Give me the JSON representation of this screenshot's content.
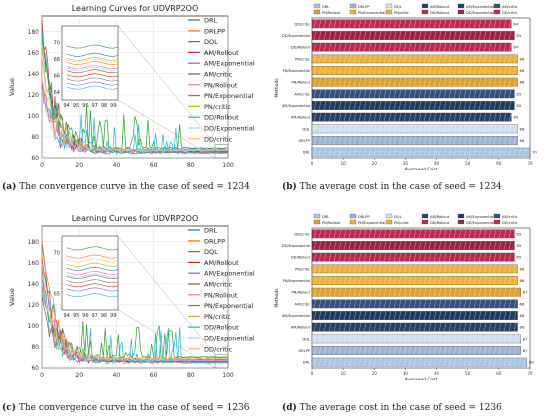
{
  "captions": [
    {
      "label": "(a)",
      "text": " The convergence curve in the case of seed = 1234"
    },
    {
      "label": "(b)",
      "text": " The average cost in the case of seed = 1234"
    },
    {
      "label": "(c)",
      "text": " The convergence curve in the case of seed = 1236"
    },
    {
      "label": "(d)",
      "text": " The average cost in the case of seed = 1236"
    }
  ],
  "colors": {
    "DRL": "#a8c8e8",
    "DRLPP": "#9cb4d4",
    "DQL": "#cfe0f0",
    "AMRollout": "#283f66",
    "AMExponential": "#1e3a5f",
    "AMcritic": "#34507a",
    "PNRollout": "#e0a22a",
    "PNExponential": "#f0b030",
    "PNcritic": "#eab040",
    "DDRollout": "#b8284e",
    "DDExponential": "#a01f44",
    "DDcritic": "#c02a52"
  },
  "chart_data": [
    {
      "type": "line",
      "title": "Learning Curves for UDVRP2OO",
      "xlabel": "Epoch",
      "ylabel": "Value",
      "xlim": [
        0,
        100
      ],
      "ylim": [
        60,
        195
      ],
      "xticks": [
        "0",
        "20",
        "40",
        "60",
        "80",
        "100"
      ],
      "yticks": [
        "60",
        "80",
        "100",
        "120",
        "140",
        "160",
        "180"
      ],
      "legend": [
        "DRL",
        "DRLPP",
        "DQL",
        "AM/Rollout",
        "AM/Exponential",
        "AM/critic",
        "PN/Rollout",
        "PN/Exponential",
        "PN/critic",
        "DD/Rollout",
        "DD/Exponential",
        "DD/critic"
      ],
      "inset": {
        "xticks": [
          "94",
          "95",
          "96",
          "97",
          "98",
          "99"
        ],
        "yticks": [
          "64",
          "66",
          "68",
          "70"
        ]
      },
      "series": [
        {
          "name": "DRL",
          "color": "#1f77b4",
          "final": 68.5
        },
        {
          "name": "DRLPP",
          "color": "#ff7f0e",
          "final": 67.5
        },
        {
          "name": "DQL",
          "color": "#2ca02c",
          "final": 69.5
        },
        {
          "name": "AM/Rollout",
          "color": "#d62728",
          "final": 66.0
        },
        {
          "name": "AM/Exponential",
          "color": "#9467bd",
          "final": 65.0
        },
        {
          "name": "AM/critic",
          "color": "#8c564b",
          "final": 66.5
        },
        {
          "name": "PN/Rollout",
          "color": "#e377c2",
          "final": 67.0
        },
        {
          "name": "PN/Exponential",
          "color": "#7f7f7f",
          "final": 65.5
        },
        {
          "name": "PN/critic",
          "color": "#bcbd22",
          "final": 68.0
        },
        {
          "name": "DD/Rollout",
          "color": "#17becf",
          "final": 64.5
        },
        {
          "name": "DD/Exponential",
          "color": "#aec7e8",
          "final": 66.8
        },
        {
          "name": "DD/critic",
          "color": "#ffbb78",
          "final": 67.8
        }
      ]
    },
    {
      "type": "bar",
      "orientation": "horizontal",
      "xlabel": "Averaged Cost",
      "ylabel": "Methods",
      "xlim": [
        0,
        70
      ],
      "xticks": [
        "0",
        "10",
        "20",
        "30",
        "40",
        "50",
        "60",
        "70"
      ],
      "legend": [
        "DRL",
        "DRLPP",
        "DQL",
        "AM/Rollout",
        "AM/Exponential",
        "AM/critic",
        "PN/Rollout",
        "PN/Exponential",
        "PN/critic",
        "DD/Rollout",
        "DD/Exponential",
        "DD/critic"
      ],
      "categories": [
        "DD/critic",
        "DD/Exponential",
        "DD/Rollout",
        "PN/critic",
        "PN/Exponential",
        "PN/Rollout",
        "AM/critic",
        "AM/Exponential",
        "AM/Rollout",
        "DQL",
        "DRLPP",
        "DRL"
      ],
      "values": [
        64,
        65,
        64,
        66,
        66,
        66,
        65,
        65,
        64,
        66,
        66,
        70
      ],
      "labels": [
        "64",
        "65",
        "64",
        "66",
        "66",
        "66",
        "65",
        "65",
        "64",
        "66",
        "66",
        "70"
      ]
    },
    {
      "type": "line",
      "title": "Learning Curves for UDVRP2OO",
      "xlabel": "Epoch",
      "ylabel": "Value",
      "xlim": [
        0,
        100
      ],
      "ylim": [
        60,
        195
      ],
      "xticks": [
        "0",
        "20",
        "40",
        "60",
        "80",
        "100"
      ],
      "yticks": [
        "60",
        "80",
        "100",
        "120",
        "140",
        "160",
        "180"
      ],
      "legend": [
        "DRL",
        "DRLPP",
        "DQL",
        "AM/Rollout",
        "AM/Exponential",
        "AM/critic",
        "PN/Rollout",
        "PN/Exponential",
        "PN/critic",
        "DD/Rollout",
        "DD/Exponential",
        "DD/critic"
      ],
      "inset": {
        "xticks": [
          "94",
          "95",
          "96",
          "97",
          "98",
          "99"
        ],
        "yticks": [
          "65",
          "70"
        ]
      },
      "series": [
        {
          "name": "DRL",
          "color": "#1f77b4",
          "final": 68.0
        },
        {
          "name": "DRLPP",
          "color": "#ff7f0e",
          "final": 69.5
        },
        {
          "name": "DQL",
          "color": "#2ca02c",
          "final": 70.5
        },
        {
          "name": "AM/Rollout",
          "color": "#d62728",
          "final": 66.0
        },
        {
          "name": "AM/Exponential",
          "color": "#9467bd",
          "final": 65.5
        },
        {
          "name": "AM/critic",
          "color": "#8c564b",
          "final": 67.0
        },
        {
          "name": "PN/Rollout",
          "color": "#e377c2",
          "final": 67.5
        },
        {
          "name": "PN/Exponential",
          "color": "#7f7f7f",
          "final": 66.5
        },
        {
          "name": "PN/critic",
          "color": "#bcbd22",
          "final": 68.5
        },
        {
          "name": "DD/Rollout",
          "color": "#17becf",
          "final": 64.8
        },
        {
          "name": "DD/Exponential",
          "color": "#aec7e8",
          "final": 67.2
        },
        {
          "name": "DD/critic",
          "color": "#ffbb78",
          "final": 69.0
        }
      ]
    },
    {
      "type": "bar",
      "orientation": "horizontal",
      "xlabel": "Averaged Cost",
      "ylabel": "Methods",
      "xlim": [
        0,
        70
      ],
      "xticks": [
        "0",
        "10",
        "20",
        "30",
        "40",
        "50",
        "60",
        "70"
      ],
      "legend": [
        "DRL",
        "DRLPP",
        "DQL",
        "AM/Rollout",
        "AM/Exponential",
        "AM/critic",
        "PN/Rollout",
        "PN/Exponential",
        "PN/critic",
        "DD/Rollout",
        "DD/Exponential",
        "DD/critic"
      ],
      "categories": [
        "DD/critic",
        "DD/Exponential",
        "DD/Rollout",
        "PN/critic",
        "PN/Exponential",
        "PN/Rollout",
        "AM/critic",
        "AM/Exponential",
        "AM/Rollout",
        "DQL",
        "DRLPP",
        "DRL"
      ],
      "values": [
        65,
        65,
        65,
        66,
        66,
        67,
        66,
        66,
        66,
        67,
        67,
        69
      ],
      "labels": [
        "65",
        "65",
        "65",
        "66",
        "66",
        "67",
        "66",
        "66",
        "66",
        "67",
        "67",
        "69"
      ]
    }
  ]
}
